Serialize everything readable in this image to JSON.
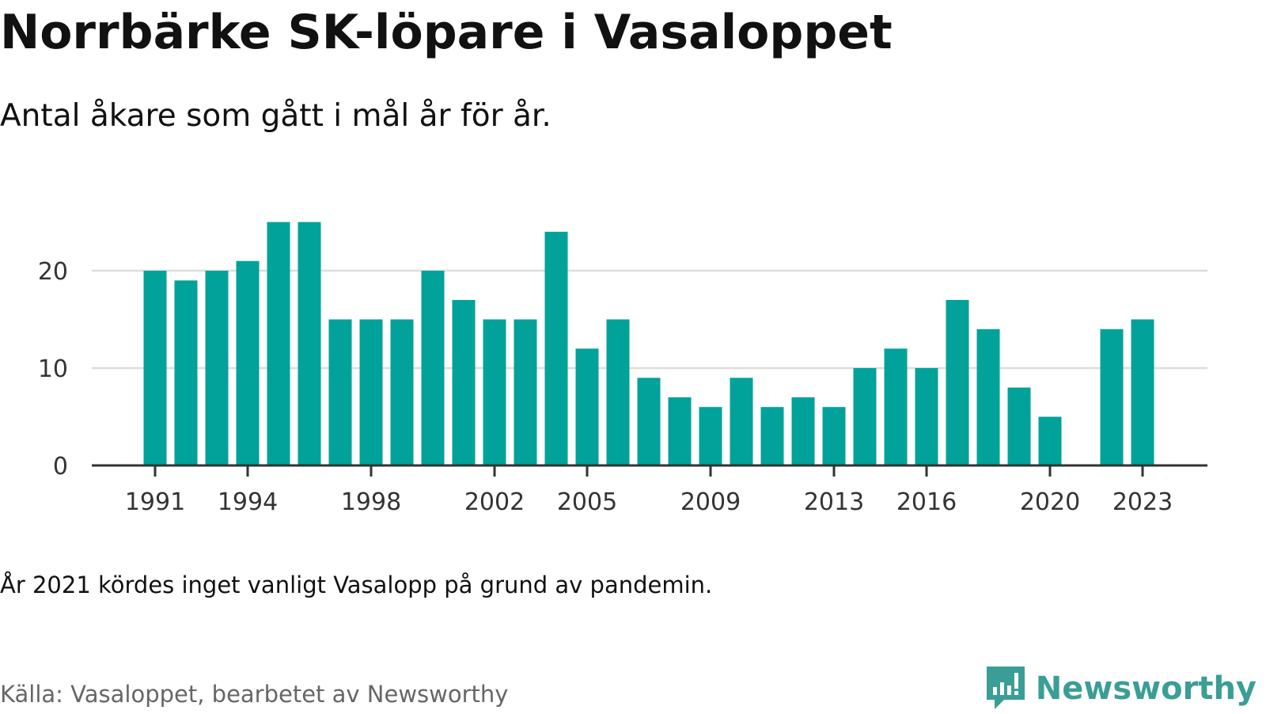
{
  "title": "Norrbärke SK-löpare i Vasaloppet",
  "subtitle": "Antal åkare som gått i mål år för år.",
  "note": "År 2021 kördes inget vanligt Vasalopp på grund av pandemin.",
  "source": "Källa: Vasaloppet, bearbetet av Newsworthy",
  "brand": {
    "name": "Newsworthy",
    "icon": "newsworthy-logo-icon",
    "color": "#3a9e96"
  },
  "chart_data": {
    "type": "bar",
    "title": "Norrbärke SK-löpare i Vasaloppet",
    "subtitle": "Antal åkare som gått i mål år för år.",
    "xlabel": "",
    "ylabel": "",
    "ylim": [
      0,
      25
    ],
    "grid": true,
    "bar_color": "#00a29a",
    "categories": [
      "1991",
      "1992",
      "1993",
      "1994",
      "1995",
      "1996",
      "1997",
      "1998",
      "1999",
      "2000",
      "2001",
      "2002",
      "2003",
      "2004",
      "2005",
      "2006",
      "2007",
      "2008",
      "2009",
      "2010",
      "2011",
      "2012",
      "2013",
      "2014",
      "2015",
      "2016",
      "2017",
      "2018",
      "2019",
      "2020",
      "2021",
      "2022",
      "2023"
    ],
    "values": [
      20,
      19,
      20,
      21,
      25,
      25,
      15,
      15,
      15,
      20,
      17,
      15,
      15,
      24,
      12,
      15,
      9,
      7,
      6,
      9,
      6,
      7,
      6,
      10,
      12,
      10,
      17,
      14,
      8,
      5,
      null,
      14,
      15
    ],
    "y_ticks": [
      0,
      10,
      20
    ],
    "x_tick_labels": [
      "1991",
      "1994",
      "1998",
      "2002",
      "2005",
      "2009",
      "2013",
      "2016",
      "2020",
      "2023"
    ]
  }
}
